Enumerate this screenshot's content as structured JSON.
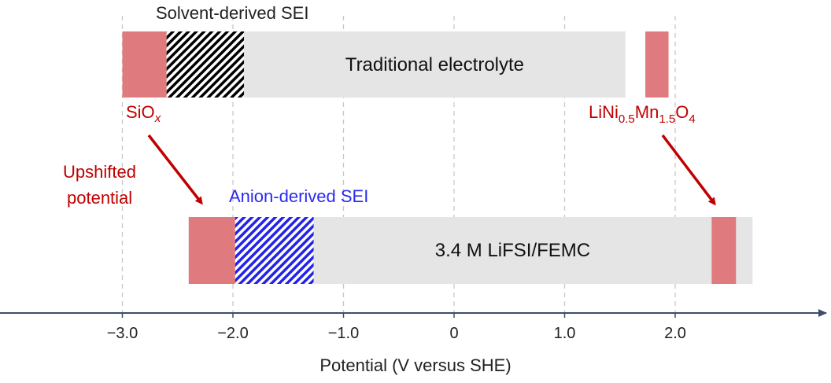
{
  "colors": {
    "window_bar": "#e5e5e5",
    "electrode_region": "#df7b7e",
    "solvent_sei_hatch": "#000000",
    "anion_sei_hatch": "#2323e8",
    "red_text": "#c00000",
    "axis": "#3c4e6b",
    "gridline": "#c8c8c8"
  },
  "axis": {
    "title": "Potential (V versus SHE)",
    "ticks": [
      -3.0,
      -2.0,
      -1.0,
      0,
      1.0,
      2.0
    ],
    "tick_labels": [
      "−3.0",
      "−2.0",
      "−1.0",
      "0",
      "1.0",
      "2.0"
    ]
  },
  "traditional": {
    "label": "Traditional electrolyte",
    "window": [
      -3.0,
      1.55
    ],
    "sei_label": "Solvent-derived SEI",
    "sei_range": [
      -2.6,
      -1.9
    ],
    "anode_range": [
      -3.0,
      -2.6
    ],
    "cathode_range": [
      1.73,
      1.94
    ]
  },
  "new": {
    "label": "3.4 M LiFSI/FEMC",
    "window": [
      -2.4,
      2.7
    ],
    "sei_label": "Anion-derived SEI",
    "sei_range": [
      -1.98,
      -1.27
    ],
    "anode_range": [
      -2.4,
      -1.98
    ],
    "cathode_range": [
      2.33,
      2.55
    ]
  },
  "annotations": {
    "anode_material": {
      "main": "SiO",
      "sub": "x"
    },
    "cathode_material": {
      "parts": [
        {
          "t": "LiNi",
          "sub": false
        },
        {
          "t": "0.5",
          "sub": true
        },
        {
          "t": "Mn",
          "sub": false
        },
        {
          "t": "1.5",
          "sub": true
        },
        {
          "t": "O",
          "sub": false
        },
        {
          "t": "4",
          "sub": true
        }
      ]
    },
    "shift_label_line1": "Upshifted",
    "shift_label_line2": "potential"
  }
}
